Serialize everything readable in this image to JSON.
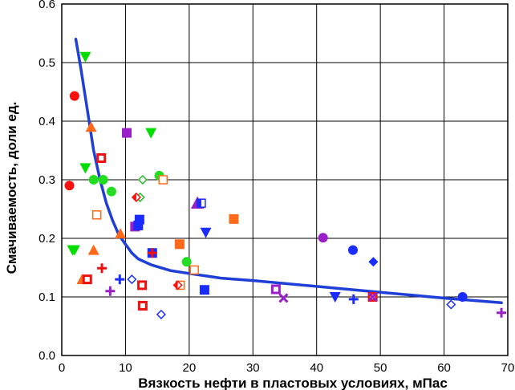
{
  "chart_data": {
    "type": "scatter",
    "title": "",
    "xlabel": "Вязкость нефти в пластовых условиях, мПас",
    "ylabel": "Смачиваемость, доли ед.",
    "xlim": [
      0,
      70
    ],
    "ylim": [
      0,
      0.6
    ],
    "xticks": [
      "0",
      "10",
      "20",
      "30",
      "40",
      "50",
      "60",
      "70"
    ],
    "yticks": [
      "0.0",
      "0.1",
      "0.2",
      "0.3",
      "0.4",
      "0.5",
      "0.6"
    ],
    "grid": true,
    "trend": {
      "color": "#1f3fd6",
      "points": [
        [
          2.2,
          0.54
        ],
        [
          3,
          0.49
        ],
        [
          4,
          0.42
        ],
        [
          5,
          0.35
        ],
        [
          6,
          0.3
        ],
        [
          7,
          0.26
        ],
        [
          8,
          0.23
        ],
        [
          9,
          0.205
        ],
        [
          10,
          0.19
        ],
        [
          11,
          0.175
        ],
        [
          12,
          0.165
        ],
        [
          14,
          0.155
        ],
        [
          17,
          0.145
        ],
        [
          20,
          0.14
        ],
        [
          25,
          0.132
        ],
        [
          30,
          0.128
        ],
        [
          40,
          0.118
        ],
        [
          50,
          0.108
        ],
        [
          60,
          0.098
        ],
        [
          69,
          0.09
        ]
      ]
    },
    "series": [
      {
        "marker": "circle",
        "color": "#ff1010",
        "points": [
          [
            1.2,
            0.29
          ],
          [
            2.0,
            0.443
          ]
        ]
      },
      {
        "marker": "triangle-down",
        "color": "#00dd00",
        "points": [
          [
            3.7,
            0.51
          ],
          [
            3.7,
            0.32
          ],
          [
            1.7,
            0.18
          ],
          [
            2.0,
            0.18
          ],
          [
            14.0,
            0.38
          ]
        ]
      },
      {
        "marker": "circle",
        "color": "#22dd22",
        "points": [
          [
            5.0,
            0.3
          ],
          [
            6.5,
            0.3
          ],
          [
            7.8,
            0.28
          ],
          [
            15.3,
            0.307
          ],
          [
            19.6,
            0.16
          ]
        ]
      },
      {
        "marker": "triangle",
        "color": "#ff6a1a",
        "points": [
          [
            4.6,
            0.39
          ],
          [
            5.0,
            0.18
          ],
          [
            9.2,
            0.208
          ],
          [
            3.2,
            0.13
          ]
        ]
      },
      {
        "marker": "square-open-center",
        "color": "#ee1111",
        "points": [
          [
            6.2,
            0.337
          ],
          [
            4.0,
            0.13
          ],
          [
            12.6,
            0.12
          ],
          [
            12.7,
            0.085
          ],
          [
            48.8,
            0.1
          ]
        ]
      },
      {
        "marker": "square-open",
        "color": "#ff6a1a",
        "points": [
          [
            5.5,
            0.24
          ],
          [
            15.9,
            0.3
          ],
          [
            20.8,
            0.146
          ],
          [
            18.6,
            0.12
          ]
        ]
      },
      {
        "marker": "square",
        "color": "#ff6a1a",
        "points": [
          [
            18.5,
            0.19
          ],
          [
            27.0,
            0.233
          ]
        ]
      },
      {
        "marker": "square",
        "color": "#9a1fc8",
        "points": [
          [
            10.2,
            0.38
          ],
          [
            11.5,
            0.22
          ]
        ]
      },
      {
        "marker": "square",
        "color": "#1a2cff",
        "points": [
          [
            12.2,
            0.232
          ],
          [
            12.0,
            0.222
          ],
          [
            22.4,
            0.112
          ],
          [
            14.2,
            0.175
          ]
        ]
      },
      {
        "marker": "diamond-open",
        "color": "#22bb22",
        "points": [
          [
            12.7,
            0.3
          ],
          [
            12.3,
            0.27
          ]
        ]
      },
      {
        "marker": "diamond-half",
        "color": "#ff1010",
        "points": [
          [
            11.7,
            0.27
          ],
          [
            18.2,
            0.12
          ]
        ]
      },
      {
        "marker": "triangle-half",
        "color": "#9a1fc8",
        "points": [
          [
            21.3,
            0.26
          ]
        ]
      },
      {
        "marker": "square-half",
        "color": "#1a2cff",
        "points": [
          [
            21.9,
            0.26
          ]
        ]
      },
      {
        "marker": "triangle-down",
        "color": "#1a2cff",
        "points": [
          [
            22.6,
            0.21
          ],
          [
            42.9,
            0.1
          ]
        ]
      },
      {
        "marker": "plus",
        "color": "#ee1111",
        "points": [
          [
            6.3,
            0.149
          ],
          [
            14.2,
            0.175
          ]
        ]
      },
      {
        "marker": "plus",
        "color": "#1a2cff",
        "points": [
          [
            9.1,
            0.13
          ],
          [
            45.8,
            0.096
          ]
        ]
      },
      {
        "marker": "plus",
        "color": "#9a1fc8",
        "points": [
          [
            7.6,
            0.11
          ],
          [
            69.0,
            0.073
          ]
        ]
      },
      {
        "marker": "diamond-open",
        "color": "#1a2cff",
        "points": [
          [
            11.0,
            0.13
          ],
          [
            15.6,
            0.07
          ],
          [
            61.1,
            0.087
          ]
        ]
      },
      {
        "marker": "circle",
        "color": "#9a1fc8",
        "points": [
          [
            41.0,
            0.201
          ]
        ]
      },
      {
        "marker": "circle",
        "color": "#1a2cff",
        "points": [
          [
            45.7,
            0.18
          ],
          [
            62.9,
            0.1
          ]
        ]
      },
      {
        "marker": "diamond",
        "color": "#1a2cff",
        "points": [
          [
            48.9,
            0.16
          ]
        ]
      },
      {
        "marker": "square-open-center",
        "color": "#9a1fc8",
        "points": [
          [
            33.6,
            0.113
          ]
        ]
      },
      {
        "marker": "cross",
        "color": "#9a1fc8",
        "points": [
          [
            34.8,
            0.098
          ],
          [
            48.8,
            0.1
          ]
        ]
      }
    ]
  }
}
